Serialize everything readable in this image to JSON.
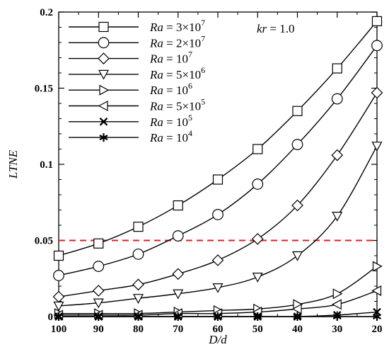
{
  "chart_data": {
    "type": "line",
    "xlabel": "D/d",
    "ylabel": "LTNE",
    "xlim": [
      100,
      20
    ],
    "ylim": [
      0,
      0.2
    ],
    "x_reversed": true,
    "xticks": [
      100,
      90,
      80,
      70,
      60,
      50,
      40,
      30,
      20
    ],
    "yticks": [
      0,
      0.05,
      0.1,
      0.15,
      0.2
    ],
    "xtick_labels": [
      "100",
      "90",
      "80",
      "70",
      "60",
      "50",
      "40",
      "30",
      "20"
    ],
    "ytick_labels": [
      "0",
      "0.05",
      "0.1",
      "0.15",
      "0.2"
    ],
    "annotation": "kr = 1.0",
    "reference_line": {
      "y": 0.05,
      "style": "dashed",
      "color": "#dd2222"
    },
    "legend_position": "top-left",
    "x": [
      100,
      90,
      80,
      70,
      60,
      50,
      40,
      30,
      20
    ],
    "series": [
      {
        "name": "Ra = 3×10^7",
        "marker": "square",
        "values": [
          0.04,
          0.048,
          0.059,
          0.073,
          0.09,
          0.11,
          0.135,
          0.163,
          0.194
        ]
      },
      {
        "name": "Ra = 2×10^7",
        "marker": "circle",
        "values": [
          0.027,
          0.033,
          0.041,
          0.053,
          0.067,
          0.087,
          0.113,
          0.143,
          0.178
        ]
      },
      {
        "name": "Ra = 10^7",
        "marker": "diamond",
        "values": [
          0.013,
          0.017,
          0.021,
          0.028,
          0.037,
          0.051,
          0.073,
          0.106,
          0.147
        ]
      },
      {
        "name": "Ra = 5×10^6",
        "marker": "triangle-down",
        "values": [
          0.007,
          0.009,
          0.012,
          0.015,
          0.019,
          0.026,
          0.04,
          0.066,
          0.112
        ]
      },
      {
        "name": "Ra = 10^6",
        "marker": "triangle-right",
        "values": [
          0.002,
          0.002,
          0.002,
          0.003,
          0.004,
          0.005,
          0.008,
          0.015,
          0.033
        ]
      },
      {
        "name": "Ra = 5×10^5",
        "marker": "triangle-left",
        "values": [
          0.001,
          0.001,
          0.001,
          0.002,
          0.002,
          0.003,
          0.005,
          0.008,
          0.017
        ]
      },
      {
        "name": "Ra = 10^5",
        "marker": "x",
        "values": [
          0.0,
          0.0,
          0.0,
          0.0,
          0.0,
          0.0,
          0.0,
          0.001,
          0.003
        ]
      },
      {
        "name": "Ra = 10^4",
        "marker": "star",
        "values": [
          0.0,
          0.0,
          0.0,
          0.0,
          0.0,
          0.0,
          0.0,
          0.0,
          0.0
        ]
      }
    ],
    "legend": [
      {
        "prefix": "Ra",
        "eq": " = ",
        "mant": "3×10",
        "exp": "7"
      },
      {
        "prefix": "Ra",
        "eq": " = ",
        "mant": "2×10",
        "exp": "7"
      },
      {
        "prefix": "Ra",
        "eq": " = ",
        "mant": "10",
        "exp": "7"
      },
      {
        "prefix": "Ra",
        "eq": " = ",
        "mant": "5×10",
        "exp": "6"
      },
      {
        "prefix": "Ra",
        "eq": " = ",
        "mant": "10",
        "exp": "6"
      },
      {
        "prefix": "Ra",
        "eq": " = ",
        "mant": "5×10",
        "exp": "5"
      },
      {
        "prefix": "Ra",
        "eq": " = ",
        "mant": "10",
        "exp": "5"
      },
      {
        "prefix": "Ra",
        "eq": " = ",
        "mant": "10",
        "exp": "4"
      }
    ],
    "grid": false
  }
}
